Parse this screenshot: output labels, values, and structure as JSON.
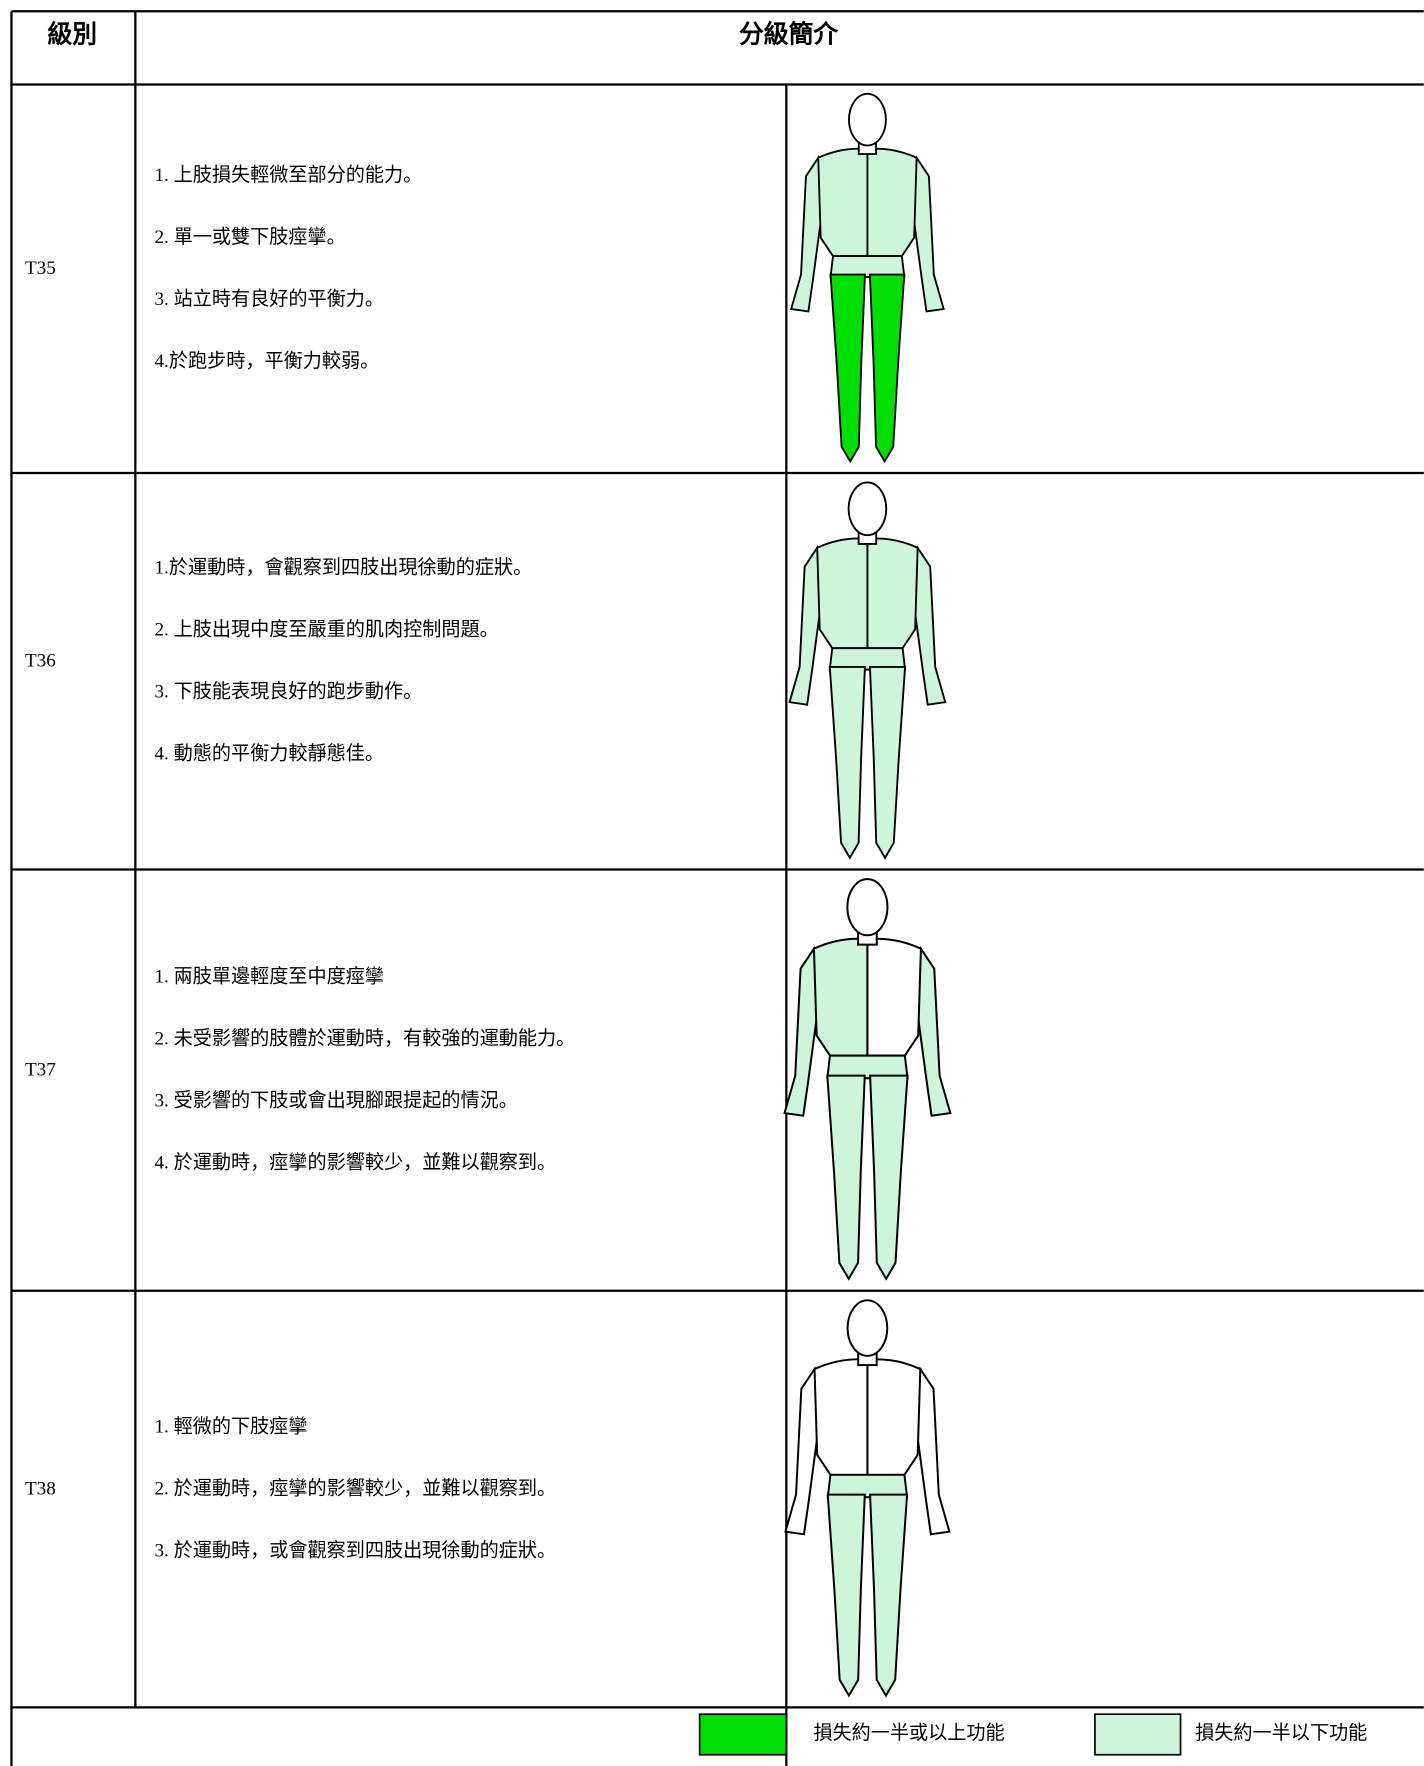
{
  "header": {
    "grade": "級別",
    "description": "分級簡介"
  },
  "rows": [
    {
      "grade": "T35",
      "lines": [
        "1.  上肢損失輕微至部分的能力。",
        "2. 單一或雙下肢痙攣。",
        "3. 站立時有良好的平衡力。",
        "4.於跑步時，平衡力較弱。"
      ]
    },
    {
      "grade": "T36",
      "lines": [
        "1.於運動時，會觀察到四肢出現徐動的症狀。",
        "2. 上肢出現中度至嚴重的肌肉控制問題。",
        "3. 下肢能表現良好的跑步動作。",
        "4. 動態的平衡力較靜態佳。"
      ]
    },
    {
      "grade": "T37",
      "lines": [
        "1. 兩肢單邊輕度至中度痙攣",
        "2. 未受影響的肢體於運動時，有較強的運動能力。",
        "3. 受影響的下肢或會出現腳跟提起的情況。",
        "4. 於運動時，痙攣的影響較少，並難以觀察到。"
      ]
    },
    {
      "grade": "T38",
      "lines": [
        "1. 輕微的下肢痙攣",
        "2. 於運動時，痙攣的影響較少，並難以觀察到。",
        "3. 於運動時，或會觀察到四肢出現徐動的症狀。"
      ]
    }
  ],
  "legend": [
    {
      "label": "損失約一半或以上功能"
    },
    {
      "label": "損失約一半以下功能"
    }
  ]
}
